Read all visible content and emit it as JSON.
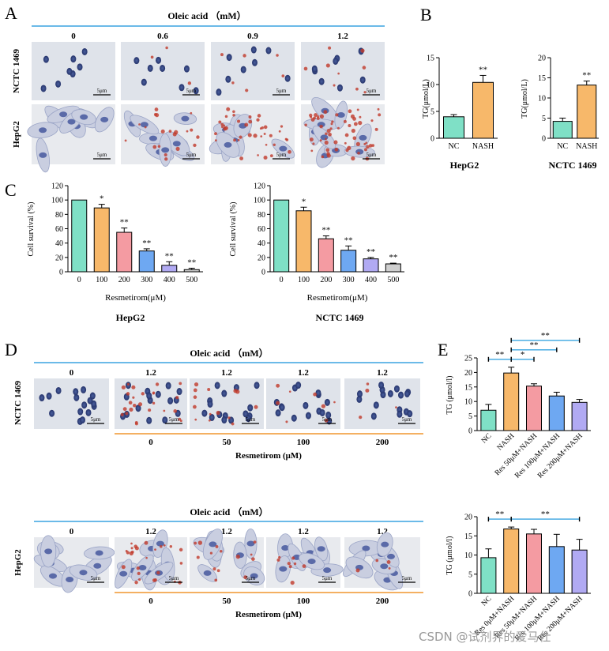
{
  "figure": {
    "panel_letters": {
      "A": "A",
      "B": "B",
      "C": "C",
      "D": "D",
      "E": "E"
    },
    "cell_lines": {
      "hepg2": "HepG2",
      "nctc": "NCTC 1469"
    },
    "scale_bar": "5μm",
    "watermark": "CSDN @试剂界的爱马仕",
    "colors": {
      "nc": "#7fe0c6",
      "nash": "#f7b86a",
      "res50": "#f49ba2",
      "res100": "#6ea8f2",
      "res200": "#b1aaf3",
      "dose0": "#7fe0c6",
      "dose100": "#f7b86a",
      "dose200": "#f49ba2",
      "dose300": "#6ea8f2",
      "dose400": "#b1aaf3",
      "dose500": "#cfcfcf",
      "accent_blue": "#3aa4e0",
      "accent_orange": "#f0962f",
      "oil_red": "#c0392b",
      "micro_bg": "#dfe3ea",
      "hepg2_bg": "#e8eaee"
    }
  },
  "panel_a": {
    "header": "Oleic acid （mM）",
    "concentrations": [
      "0",
      "0.6",
      "0.9",
      "1.2"
    ],
    "rows": [
      "NCTC 1469",
      "HepG2"
    ],
    "image_icons": [
      "micrograph-icon"
    ]
  },
  "panel_d_top": {
    "header": "Oleic acid （mM）",
    "oleic": [
      "0",
      "1.2",
      "1.2",
      "1.2",
      "1.2"
    ],
    "resmetirom": [
      "0",
      "50",
      "100",
      "200"
    ],
    "res_label": "Resmetirom (μM)",
    "row": "NCTC 1469"
  },
  "panel_d_bottom": {
    "header": "Oleic acid （mM）",
    "oleic": [
      "0",
      "1.2",
      "1.2",
      "1.2",
      "1.2"
    ],
    "resmetirom": [
      "0",
      "50",
      "100",
      "200"
    ],
    "res_label": "Resmetirom (μM)",
    "row": "HepG2"
  },
  "chart_data": [
    {
      "id": "B1",
      "type": "bar",
      "title": "HepG2",
      "categories": [
        "NC",
        "NASH"
      ],
      "values": [
        4.0,
        10.4
      ],
      "errors": [
        0.4,
        1.3
      ],
      "significance": [
        "",
        "**"
      ],
      "ylabel": "TG(μmol/L)",
      "ylim": [
        0,
        15
      ],
      "yticks": [
        "0",
        "5",
        "10",
        "15"
      ]
    },
    {
      "id": "B2",
      "type": "bar",
      "title": "NCTC 1469",
      "categories": [
        "NC",
        "NASH"
      ],
      "values": [
        4.2,
        13.2
      ],
      "errors": [
        0.8,
        1.0
      ],
      "significance": [
        "",
        "**"
      ],
      "ylabel": "TG(μmol/L)",
      "ylim": [
        0,
        20
      ],
      "yticks": [
        "0",
        "5",
        "10",
        "15",
        "20"
      ]
    },
    {
      "id": "C1",
      "type": "bar",
      "title": "HepG2",
      "categories": [
        "0",
        "100",
        "200",
        "300",
        "400",
        "500"
      ],
      "values": [
        100,
        89,
        55,
        29,
        9,
        3
      ],
      "errors": [
        0,
        5,
        6,
        3,
        5,
        2
      ],
      "significance": [
        "",
        "*",
        "**",
        "**",
        "**",
        "**"
      ],
      "xlabel": "Resmetirom(μM)",
      "ylabel": "Cell survival (%)",
      "ylim": [
        0,
        120
      ],
      "yticks": [
        "0",
        "20",
        "40",
        "60",
        "80",
        "100",
        "120"
      ]
    },
    {
      "id": "C2",
      "type": "bar",
      "title": "NCTC 1469",
      "categories": [
        "0",
        "100",
        "200",
        "300",
        "400",
        "500"
      ],
      "values": [
        100,
        85,
        46,
        30,
        18,
        11
      ],
      "errors": [
        0,
        5,
        4,
        6,
        2,
        1
      ],
      "significance": [
        "",
        "*",
        "**",
        "**",
        "**",
        "**"
      ],
      "xlabel": "Resmetirom(μM)",
      "ylabel": "Cell survival (%)",
      "ylim": [
        0,
        120
      ],
      "yticks": [
        "0",
        "20",
        "40",
        "60",
        "80",
        "100",
        "120"
      ]
    },
    {
      "id": "E1",
      "type": "bar",
      "title": "",
      "categories": [
        "NC",
        "NASH",
        "Res 50μM+NASH",
        "Res 100μM+NASH",
        "Res 200μM+NASH"
      ],
      "values": [
        7.0,
        19.8,
        15.3,
        11.9,
        9.7
      ],
      "errors": [
        2.0,
        2.0,
        0.8,
        1.3,
        1.0
      ],
      "brackets": [
        {
          "from": 0,
          "to": 1,
          "label": "**",
          "level": 0
        },
        {
          "from": 1,
          "to": 2,
          "label": "*",
          "level": 0
        },
        {
          "from": 1,
          "to": 3,
          "label": "**",
          "level": 1
        },
        {
          "from": 1,
          "to": 4,
          "label": "**",
          "level": 2
        }
      ],
      "ylabel": "TG (μmol/l)",
      "ylim": [
        0,
        25
      ],
      "yticks": [
        "0",
        "5",
        "10",
        "15",
        "20",
        "25"
      ]
    },
    {
      "id": "E2",
      "type": "bar",
      "title": "",
      "categories": [
        "NC",
        "Res 0μM+NASH",
        "Res 50μM+NASH",
        "Res 100μM+NASH",
        "Res 200μM+NASH"
      ],
      "values": [
        9.3,
        16.8,
        15.5,
        12.2,
        11.3
      ],
      "errors": [
        2.3,
        0.5,
        1.2,
        3.2,
        2.8
      ],
      "brackets": [
        {
          "from": 0,
          "to": 1,
          "label": "**",
          "level": 0
        },
        {
          "from": 1,
          "to": 4,
          "label": "**",
          "level": 0
        }
      ],
      "ylabel": "TG (μmol/l)",
      "ylim": [
        0,
        20
      ],
      "yticks": [
        "0",
        "5",
        "10",
        "15",
        "20"
      ]
    }
  ]
}
